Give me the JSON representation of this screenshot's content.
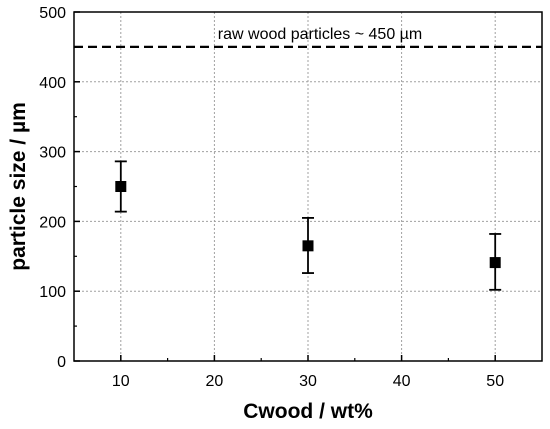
{
  "chart_data": {
    "type": "scatter",
    "xlabel": "Cwood / wt%",
    "ylabel": "particle size / µm",
    "xlim": [
      5,
      55
    ],
    "ylim": [
      0,
      500
    ],
    "x_ticks": [
      10,
      20,
      30,
      40,
      50
    ],
    "y_ticks": [
      0,
      100,
      200,
      300,
      400,
      500
    ],
    "x_tick_labels": [
      "10",
      "20",
      "30",
      "40",
      "50"
    ],
    "y_tick_labels": [
      "0",
      "100",
      "200",
      "300",
      "400",
      "500"
    ],
    "grid": true,
    "series": [
      {
        "marker": "square",
        "color": "#000000",
        "points": [
          {
            "x": 10,
            "y": 250,
            "err_low": 214,
            "err_high": 286
          },
          {
            "x": 30,
            "y": 165,
            "err_low": 126,
            "err_high": 205
          },
          {
            "x": 50,
            "y": 141,
            "err_low": 102,
            "err_high": 182
          }
        ]
      }
    ],
    "reference_line": {
      "y": 450,
      "style": "dashed",
      "label": "raw wood particles ~ 450 µm"
    }
  }
}
